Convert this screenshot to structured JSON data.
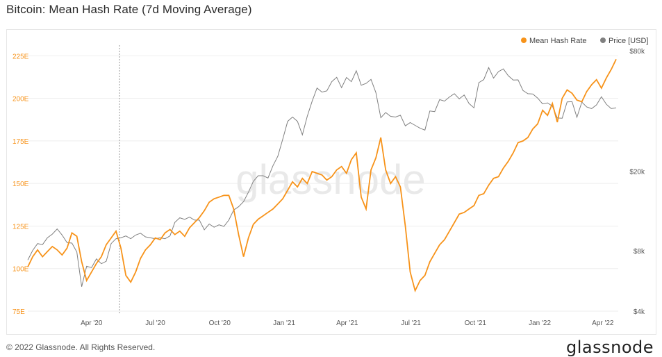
{
  "page": {
    "title": "Bitcoin: Mean Hash Rate (7d Moving Average)",
    "footer": "© 2022 Glassnode. All Rights Reserved.",
    "brand": "glassnode",
    "watermark": "glassnode"
  },
  "colors": {
    "hash_rate": "#f7931a",
    "price": "#808080",
    "axis_text_left": "#f7931a",
    "axis_text_right": "#555555",
    "grid": "#eeeeee"
  },
  "chart_data": {
    "type": "line",
    "legend_position": "top-right",
    "grid": true,
    "x_ticks": [
      "Apr '20",
      "Jul '20",
      "Oct '20",
      "Jan '21",
      "Apr '21",
      "Jul '21",
      "Oct '21",
      "Jan '22",
      "Apr '22"
    ],
    "y_left": {
      "ticks": [
        "75E",
        "100E",
        "125E",
        "150E",
        "175E",
        "200E",
        "225E"
      ],
      "range": [
        75,
        228
      ]
    },
    "y_right": {
      "scale": "log",
      "ticks": [
        "$4k",
        "$8k",
        "$20k",
        "$80k"
      ],
      "tick_values": [
        4000,
        8000,
        20000,
        80000
      ],
      "range": [
        4000,
        80000
      ]
    },
    "annotation_line_date": "2020-05-11",
    "series": [
      {
        "name": "Mean Hash Rate",
        "axis": "left",
        "points": [
          [
            "2020-01-01",
            101
          ],
          [
            "2020-01-08",
            107
          ],
          [
            "2020-01-15",
            111
          ],
          [
            "2020-01-22",
            107
          ],
          [
            "2020-01-29",
            110
          ],
          [
            "2020-02-05",
            113
          ],
          [
            "2020-02-12",
            111
          ],
          [
            "2020-02-19",
            108
          ],
          [
            "2020-02-26",
            112
          ],
          [
            "2020-03-04",
            121
          ],
          [
            "2020-03-11",
            119
          ],
          [
            "2020-03-18",
            104
          ],
          [
            "2020-03-25",
            93
          ],
          [
            "2020-04-01",
            98
          ],
          [
            "2020-04-08",
            103
          ],
          [
            "2020-04-15",
            107
          ],
          [
            "2020-04-22",
            114
          ],
          [
            "2020-04-29",
            118
          ],
          [
            "2020-05-06",
            122
          ],
          [
            "2020-05-13",
            112
          ],
          [
            "2020-05-20",
            96
          ],
          [
            "2020-05-27",
            92
          ],
          [
            "2020-06-03",
            98
          ],
          [
            "2020-06-10",
            106
          ],
          [
            "2020-06-17",
            111
          ],
          [
            "2020-06-24",
            114
          ],
          [
            "2020-07-01",
            118
          ],
          [
            "2020-07-08",
            117
          ],
          [
            "2020-07-15",
            121
          ],
          [
            "2020-07-22",
            123
          ],
          [
            "2020-07-29",
            120
          ],
          [
            "2020-08-05",
            122
          ],
          [
            "2020-08-12",
            119
          ],
          [
            "2020-08-19",
            124
          ],
          [
            "2020-08-26",
            127
          ],
          [
            "2020-09-02",
            130
          ],
          [
            "2020-09-09",
            134
          ],
          [
            "2020-09-16",
            139
          ],
          [
            "2020-09-23",
            141
          ],
          [
            "2020-09-30",
            142
          ],
          [
            "2020-10-07",
            143
          ],
          [
            "2020-10-14",
            143
          ],
          [
            "2020-10-21",
            135
          ],
          [
            "2020-10-28",
            120
          ],
          [
            "2020-11-04",
            107
          ],
          [
            "2020-11-11",
            118
          ],
          [
            "2020-11-18",
            126
          ],
          [
            "2020-11-25",
            129
          ],
          [
            "2020-12-02",
            131
          ],
          [
            "2020-12-09",
            133
          ],
          [
            "2020-12-16",
            135
          ],
          [
            "2020-12-23",
            138
          ],
          [
            "2020-12-30",
            141
          ],
          [
            "2021-01-06",
            146
          ],
          [
            "2021-01-13",
            151
          ],
          [
            "2021-01-20",
            148
          ],
          [
            "2021-01-27",
            153
          ],
          [
            "2021-02-03",
            150
          ],
          [
            "2021-02-10",
            157
          ],
          [
            "2021-02-17",
            156
          ],
          [
            "2021-02-24",
            155
          ],
          [
            "2021-03-03",
            152
          ],
          [
            "2021-03-10",
            154
          ],
          [
            "2021-03-17",
            158
          ],
          [
            "2021-03-24",
            160
          ],
          [
            "2021-03-31",
            156
          ],
          [
            "2021-04-07",
            164
          ],
          [
            "2021-04-14",
            168
          ],
          [
            "2021-04-21",
            142
          ],
          [
            "2021-04-28",
            135
          ],
          [
            "2021-05-05",
            158
          ],
          [
            "2021-05-12",
            165
          ],
          [
            "2021-05-19",
            177
          ],
          [
            "2021-05-26",
            158
          ],
          [
            "2021-06-02",
            150
          ],
          [
            "2021-06-09",
            154
          ],
          [
            "2021-06-16",
            148
          ],
          [
            "2021-06-23",
            125
          ],
          [
            "2021-06-30",
            98
          ],
          [
            "2021-07-07",
            87
          ],
          [
            "2021-07-14",
            93
          ],
          [
            "2021-07-21",
            96
          ],
          [
            "2021-07-28",
            104
          ],
          [
            "2021-08-04",
            109
          ],
          [
            "2021-08-11",
            114
          ],
          [
            "2021-08-18",
            117
          ],
          [
            "2021-08-25",
            122
          ],
          [
            "2021-09-01",
            127
          ],
          [
            "2021-09-08",
            132
          ],
          [
            "2021-09-15",
            133
          ],
          [
            "2021-09-22",
            135
          ],
          [
            "2021-09-29",
            137
          ],
          [
            "2021-10-06",
            143
          ],
          [
            "2021-10-13",
            144
          ],
          [
            "2021-10-20",
            149
          ],
          [
            "2021-10-27",
            153
          ],
          [
            "2021-11-03",
            154
          ],
          [
            "2021-11-10",
            159
          ],
          [
            "2021-11-17",
            163
          ],
          [
            "2021-11-24",
            168
          ],
          [
            "2021-12-01",
            174
          ],
          [
            "2021-12-08",
            175
          ],
          [
            "2021-12-15",
            177
          ],
          [
            "2021-12-22",
            182
          ],
          [
            "2021-12-29",
            185
          ],
          [
            "2022-01-05",
            193
          ],
          [
            "2022-01-12",
            190
          ],
          [
            "2022-01-19",
            197
          ],
          [
            "2022-01-26",
            186
          ],
          [
            "2022-02-02",
            200
          ],
          [
            "2022-02-09",
            205
          ],
          [
            "2022-02-16",
            203
          ],
          [
            "2022-02-23",
            199
          ],
          [
            "2022-03-02",
            198
          ],
          [
            "2022-03-09",
            204
          ],
          [
            "2022-03-16",
            208
          ],
          [
            "2022-03-23",
            211
          ],
          [
            "2022-03-30",
            206
          ],
          [
            "2022-04-06",
            212
          ],
          [
            "2022-04-13",
            217
          ],
          [
            "2022-04-20",
            223
          ]
        ]
      },
      {
        "name": "Price [USD]",
        "axis": "right",
        "points": [
          [
            "2020-01-01",
            7200
          ],
          [
            "2020-01-08",
            8050
          ],
          [
            "2020-01-15",
            8700
          ],
          [
            "2020-01-22",
            8600
          ],
          [
            "2020-01-29",
            9300
          ],
          [
            "2020-02-05",
            9700
          ],
          [
            "2020-02-12",
            10300
          ],
          [
            "2020-02-19",
            9600
          ],
          [
            "2020-02-26",
            8800
          ],
          [
            "2020-03-04",
            8750
          ],
          [
            "2020-03-11",
            7900
          ],
          [
            "2020-03-18",
            5300
          ],
          [
            "2020-03-25",
            6700
          ],
          [
            "2020-04-01",
            6600
          ],
          [
            "2020-04-08",
            7300
          ],
          [
            "2020-04-15",
            6900
          ],
          [
            "2020-04-22",
            7100
          ],
          [
            "2020-04-29",
            8700
          ],
          [
            "2020-05-06",
            9200
          ],
          [
            "2020-05-13",
            9300
          ],
          [
            "2020-05-20",
            9500
          ],
          [
            "2020-05-27",
            9200
          ],
          [
            "2020-06-03",
            9600
          ],
          [
            "2020-06-10",
            9800
          ],
          [
            "2020-06-17",
            9400
          ],
          [
            "2020-06-24",
            9300
          ],
          [
            "2020-07-01",
            9200
          ],
          [
            "2020-07-08",
            9300
          ],
          [
            "2020-07-15",
            9200
          ],
          [
            "2020-07-22",
            9500
          ],
          [
            "2020-07-29",
            11100
          ],
          [
            "2020-08-05",
            11700
          ],
          [
            "2020-08-12",
            11500
          ],
          [
            "2020-08-19",
            11800
          ],
          [
            "2020-08-26",
            11400
          ],
          [
            "2020-09-02",
            11400
          ],
          [
            "2020-09-09",
            10200
          ],
          [
            "2020-09-16",
            10900
          ],
          [
            "2020-09-23",
            10500
          ],
          [
            "2020-09-30",
            10800
          ],
          [
            "2020-10-07",
            10600
          ],
          [
            "2020-10-14",
            11400
          ],
          [
            "2020-10-21",
            12800
          ],
          [
            "2020-10-28",
            13300
          ],
          [
            "2020-11-04",
            14100
          ],
          [
            "2020-11-11",
            15700
          ],
          [
            "2020-11-18",
            17800
          ],
          [
            "2020-11-25",
            19000
          ],
          [
            "2020-12-02",
            19000
          ],
          [
            "2020-12-09",
            18500
          ],
          [
            "2020-12-16",
            21300
          ],
          [
            "2020-12-23",
            23800
          ],
          [
            "2020-12-30",
            28900
          ],
          [
            "2021-01-06",
            35500
          ],
          [
            "2021-01-13",
            37300
          ],
          [
            "2021-01-20",
            35500
          ],
          [
            "2021-01-27",
            30400
          ],
          [
            "2021-02-03",
            37600
          ],
          [
            "2021-02-10",
            44800
          ],
          [
            "2021-02-17",
            52100
          ],
          [
            "2021-02-24",
            49700
          ],
          [
            "2021-03-03",
            50400
          ],
          [
            "2021-03-10",
            56000
          ],
          [
            "2021-03-17",
            58900
          ],
          [
            "2021-03-24",
            52300
          ],
          [
            "2021-03-31",
            58800
          ],
          [
            "2021-04-07",
            56000
          ],
          [
            "2021-04-14",
            63500
          ],
          [
            "2021-04-21",
            53800
          ],
          [
            "2021-04-28",
            54900
          ],
          [
            "2021-05-05",
            57500
          ],
          [
            "2021-05-12",
            49400
          ],
          [
            "2021-05-19",
            37000
          ],
          [
            "2021-05-26",
            39300
          ],
          [
            "2021-06-02",
            37600
          ],
          [
            "2021-06-09",
            37300
          ],
          [
            "2021-06-16",
            38100
          ],
          [
            "2021-06-23",
            33700
          ],
          [
            "2021-06-30",
            35000
          ],
          [
            "2021-07-07",
            33900
          ],
          [
            "2021-07-14",
            32800
          ],
          [
            "2021-07-21",
            32100
          ],
          [
            "2021-07-28",
            40000
          ],
          [
            "2021-08-04",
            39700
          ],
          [
            "2021-08-11",
            45600
          ],
          [
            "2021-08-18",
            44800
          ],
          [
            "2021-08-25",
            47000
          ],
          [
            "2021-09-01",
            48800
          ],
          [
            "2021-09-08",
            46000
          ],
          [
            "2021-09-15",
            48100
          ],
          [
            "2021-09-22",
            43600
          ],
          [
            "2021-09-29",
            41500
          ],
          [
            "2021-10-06",
            55400
          ],
          [
            "2021-10-13",
            57400
          ],
          [
            "2021-10-20",
            65900
          ],
          [
            "2021-10-27",
            58400
          ],
          [
            "2021-11-03",
            62900
          ],
          [
            "2021-11-10",
            64900
          ],
          [
            "2021-11-17",
            60000
          ],
          [
            "2021-11-24",
            57100
          ],
          [
            "2021-12-01",
            57200
          ],
          [
            "2021-12-08",
            50600
          ],
          [
            "2021-12-15",
            48800
          ],
          [
            "2021-12-22",
            48600
          ],
          [
            "2021-12-29",
            46400
          ],
          [
            "2022-01-05",
            43400
          ],
          [
            "2022-01-12",
            43900
          ],
          [
            "2022-01-19",
            42300
          ],
          [
            "2022-01-26",
            36900
          ],
          [
            "2022-02-02",
            36800
          ],
          [
            "2022-02-09",
            44400
          ],
          [
            "2022-02-16",
            44500
          ],
          [
            "2022-02-23",
            37200
          ],
          [
            "2022-03-02",
            44300
          ],
          [
            "2022-03-09",
            41900
          ],
          [
            "2022-03-16",
            41100
          ],
          [
            "2022-03-23",
            42900
          ],
          [
            "2022-03-30",
            47100
          ],
          [
            "2022-04-06",
            43200
          ],
          [
            "2022-04-13",
            41100
          ],
          [
            "2022-04-20",
            41500
          ]
        ]
      }
    ]
  }
}
